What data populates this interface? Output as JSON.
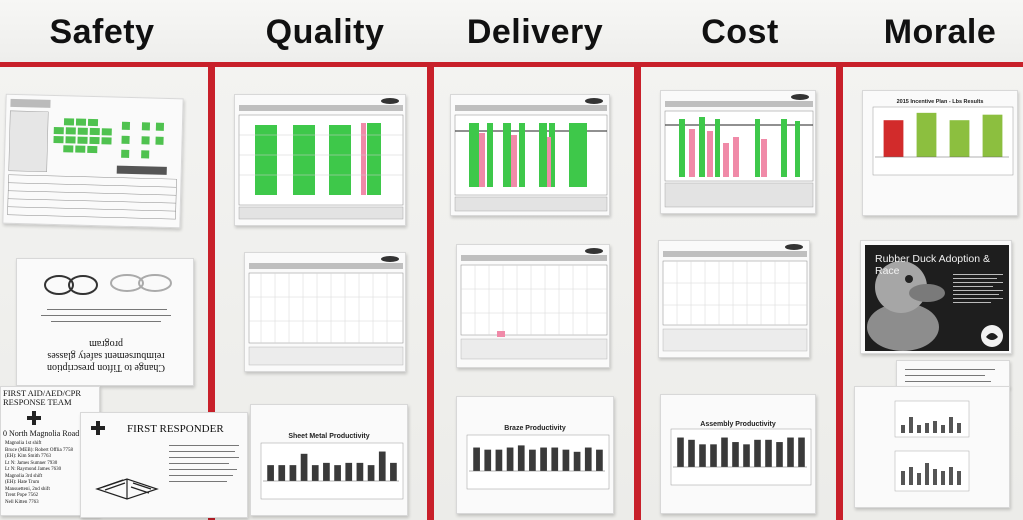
{
  "board": {
    "categories": [
      "Safety",
      "Quality",
      "Delivery",
      "Cost",
      "Morale"
    ],
    "colors": {
      "red_rail": "#c8202a",
      "green_bar": "#3ec84a",
      "pink_bar": "#f08aa8",
      "red_bar": "#d22b2b",
      "dark_bar": "#3a3a3a"
    }
  },
  "safety": {
    "eyewear_notice": {
      "lines": [
        "Change to Tifton prescription",
        "reimbursement safety glasses",
        "program"
      ]
    },
    "first_aid_sign": {
      "title": "FIRST AID/AED/CPR RESPONSE TEAM",
      "address": "0 North Magnolia Road",
      "lines": [
        "Magnolia 1st shift",
        "Bruce (MEB): Robert Offlia 7758",
        "(EH): Kim Smith 7763",
        "Lt N: James Sumner 7930",
        "Lt N: Raymond James 7630",
        "Magnolia 3rd shift",
        "(EH): Hate Trum",
        "Mansuetteni, 2nd shift",
        "Trent Pope 7562",
        "Nell Kitten 7763"
      ]
    },
    "first_responder": {
      "title": "FIRST RESPONDER"
    }
  },
  "quality": {
    "bottom_chart": {
      "title": "Sheet Metal Productivity",
      "values": [
        14,
        14,
        14,
        24,
        14,
        16,
        14,
        16,
        16,
        14,
        26,
        16
      ]
    }
  },
  "delivery": {
    "bottom_chart": {
      "title": "Braze Productivity",
      "values": [
        22,
        20,
        20,
        22,
        24,
        20,
        22,
        22,
        20,
        18,
        22,
        20
      ]
    }
  },
  "cost": {
    "bottom_chart": {
      "title": "Assembly Productivity",
      "values": [
        26,
        24,
        20,
        20,
        26,
        22,
        20,
        24,
        24,
        22,
        26,
        26
      ]
    }
  },
  "morale": {
    "incentive_chart": {
      "title": "2015 Incentive Plan - Lbs Results",
      "values": [
        40,
        48,
        40,
        46
      ],
      "colors": [
        "#d22b2b",
        "#8cbf3f",
        "#8cbf3f",
        "#8cbf3f"
      ]
    },
    "duck_poster": {
      "title": "Rubber Duck Adoption & Race"
    }
  }
}
